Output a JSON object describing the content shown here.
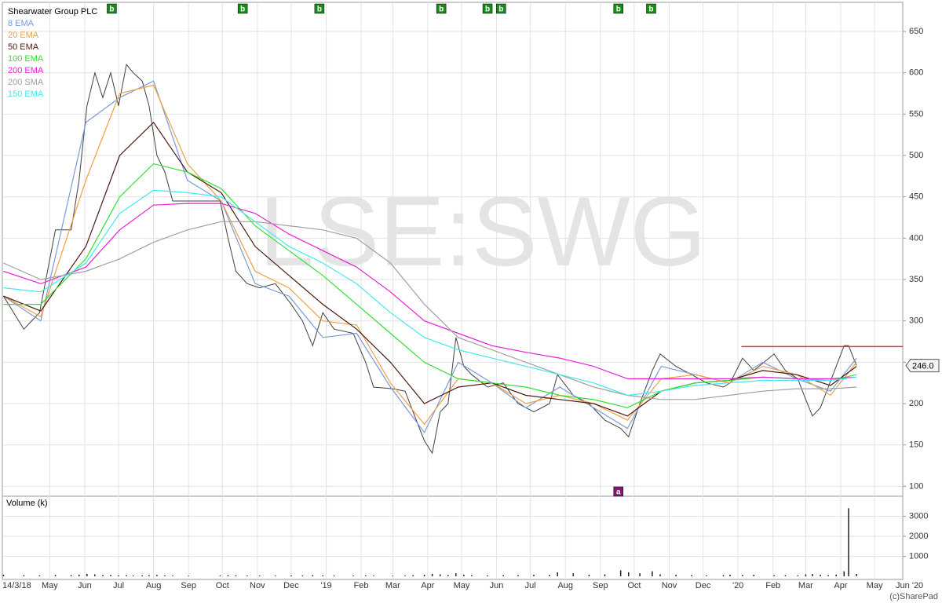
{
  "chart_data": [
    {
      "type": "line",
      "title": "Shearwater Group PLC",
      "watermark": "LSE:SWG",
      "credit": "(c)SharePad",
      "xlim": [
        6,
        804
      ],
      "ylim": [
        88,
        688
      ],
      "grid": true,
      "xticks": [
        {
          "value": 6,
          "label": "14/3/18"
        },
        {
          "value": 48,
          "label": "May"
        },
        {
          "value": 79,
          "label": "Jun"
        },
        {
          "value": 109,
          "label": "Jul"
        },
        {
          "value": 140,
          "label": "Aug"
        },
        {
          "value": 171,
          "label": "Sep"
        },
        {
          "value": 201,
          "label": "Oct"
        },
        {
          "value": 232,
          "label": "Nov"
        },
        {
          "value": 262,
          "label": "Dec"
        },
        {
          "value": 293,
          "label": "'19"
        },
        {
          "value": 324,
          "label": "Feb"
        },
        {
          "value": 352,
          "label": "Mar"
        },
        {
          "value": 383,
          "label": "Apr"
        },
        {
          "value": 413,
          "label": "May"
        },
        {
          "value": 444,
          "label": "Jun"
        },
        {
          "value": 474,
          "label": "Jul"
        },
        {
          "value": 505,
          "label": "Aug"
        },
        {
          "value": 536,
          "label": "Sep"
        },
        {
          "value": 566,
          "label": "Oct"
        },
        {
          "value": 597,
          "label": "Nov"
        },
        {
          "value": 627,
          "label": "Dec"
        },
        {
          "value": 658,
          "label": "'20"
        },
        {
          "value": 689,
          "label": "Feb"
        },
        {
          "value": 718,
          "label": "Mar"
        },
        {
          "value": 749,
          "label": "Apr"
        },
        {
          "value": 779,
          "label": "May"
        },
        {
          "value": 810,
          "label": "Jun '20"
        }
      ],
      "yticks": [
        100,
        150,
        200,
        250,
        300,
        350,
        400,
        450,
        500,
        550,
        600,
        650
      ],
      "series": [
        {
          "color": "#404040",
          "x": [
            7,
            25,
            39,
            53,
            67,
            74,
            81,
            88,
            95,
            102,
            109,
            116,
            122,
            130,
            136,
            143,
            150,
            157,
            171,
            199,
            206,
            213,
            223,
            234,
            248,
            262,
            272,
            281,
            290,
            300,
            317,
            328,
            335,
            352,
            363,
            370,
            380,
            387,
            394,
            401,
            408,
            415,
            422,
            436,
            450,
            463,
            477,
            491,
            498,
            512,
            526,
            540,
            554,
            561,
            571,
            582,
            589,
            603,
            617,
            630,
            645,
            651,
            662,
            672,
            690,
            700,
            711,
            718,
            724,
            731,
            738,
            745,
            752,
            756,
            763
          ],
          "values": [
            330,
            290,
            310,
            410,
            410,
            470,
            560,
            600,
            570,
            600,
            560,
            610,
            600,
            590,
            560,
            500,
            480,
            445,
            445,
            445,
            400,
            360,
            345,
            340,
            345,
            320,
            300,
            270,
            310,
            290,
            285,
            250,
            220,
            218,
            215,
            190,
            155,
            140,
            190,
            200,
            280,
            245,
            235,
            220,
            225,
            200,
            190,
            200,
            235,
            210,
            200,
            180,
            170,
            160,
            200,
            240,
            260,
            245,
            235,
            225,
            220,
            225,
            255,
            240,
            260,
            240,
            230,
            205,
            185,
            195,
            220,
            245,
            270,
            270,
            246
          ]
        },
        {
          "name": "8 EMA",
          "color": "#7a9ad8",
          "x": [
            7,
            40,
            80,
            110,
            140,
            170,
            200,
            230,
            260,
            290,
            320,
            350,
            380,
            410,
            440,
            470,
            500,
            530,
            560,
            590,
            620,
            650,
            680,
            710,
            740,
            763
          ],
          "values": [
            330,
            300,
            540,
            570,
            590,
            470,
            445,
            345,
            330,
            280,
            285,
            220,
            165,
            250,
            225,
            195,
            220,
            195,
            170,
            245,
            235,
            225,
            250,
            230,
            215,
            255
          ]
        },
        {
          "name": "20 EMA",
          "color": "#f0a040",
          "x": [
            7,
            40,
            80,
            110,
            140,
            170,
            200,
            230,
            260,
            290,
            320,
            350,
            380,
            410,
            440,
            470,
            500,
            530,
            560,
            590,
            620,
            650,
            680,
            710,
            740,
            763
          ],
          "values": [
            330,
            305,
            470,
            575,
            585,
            490,
            445,
            360,
            340,
            300,
            295,
            225,
            175,
            230,
            225,
            200,
            210,
            200,
            180,
            230,
            235,
            225,
            245,
            235,
            210,
            250
          ]
        },
        {
          "name": "50 EMA",
          "color": "#4a1a10",
          "x": [
            7,
            40,
            80,
            110,
            140,
            170,
            200,
            230,
            260,
            290,
            320,
            350,
            380,
            410,
            440,
            470,
            500,
            530,
            560,
            590,
            620,
            650,
            680,
            710,
            740,
            763
          ],
          "values": [
            330,
            312,
            390,
            500,
            540,
            480,
            455,
            390,
            355,
            320,
            290,
            250,
            200,
            220,
            225,
            210,
            205,
            200,
            185,
            215,
            225,
            228,
            240,
            235,
            222,
            245
          ]
        },
        {
          "name": "100 EMA",
          "color": "#30e030",
          "x": [
            7,
            40,
            80,
            110,
            140,
            170,
            200,
            230,
            260,
            290,
            320,
            350,
            380,
            410,
            440,
            470,
            500,
            530,
            560,
            590,
            620,
            650,
            680,
            710,
            740,
            763
          ],
          "values": [
            320,
            320,
            375,
            450,
            490,
            480,
            460,
            415,
            385,
            355,
            320,
            285,
            250,
            230,
            225,
            220,
            210,
            205,
            195,
            215,
            225,
            228,
            232,
            230,
            228,
            235
          ]
        },
        {
          "name": "200 EMA",
          "color": "#e820d8",
          "x": [
            7,
            40,
            80,
            110,
            140,
            170,
            200,
            230,
            260,
            290,
            320,
            350,
            380,
            410,
            440,
            470,
            500,
            530,
            560,
            590,
            620,
            650,
            680,
            710,
            740,
            763
          ],
          "values": [
            360,
            345,
            365,
            410,
            440,
            442,
            442,
            430,
            405,
            385,
            365,
            335,
            300,
            285,
            270,
            262,
            255,
            245,
            230,
            230,
            230,
            230,
            232,
            230,
            230,
            232
          ]
        },
        {
          "name": "200 SMA",
          "color": "#a0a0a0",
          "x": [
            7,
            40,
            80,
            110,
            140,
            170,
            200,
            230,
            260,
            290,
            320,
            350,
            380,
            410,
            440,
            470,
            500,
            530,
            560,
            590,
            620,
            650,
            680,
            710,
            740,
            763
          ],
          "values": [
            370,
            350,
            360,
            375,
            395,
            410,
            420,
            420,
            415,
            410,
            400,
            370,
            320,
            280,
            265,
            250,
            235,
            220,
            210,
            205,
            205,
            210,
            215,
            218,
            218,
            220
          ]
        },
        {
          "name": "150 EMA",
          "color": "#40e8f0",
          "x": [
            7,
            40,
            80,
            110,
            140,
            170,
            200,
            230,
            260,
            290,
            320,
            350,
            380,
            410,
            440,
            470,
            500,
            530,
            560,
            590,
            620,
            650,
            680,
            710,
            740,
            763
          ],
          "values": [
            340,
            335,
            370,
            430,
            458,
            455,
            450,
            420,
            390,
            370,
            345,
            310,
            280,
            265,
            255,
            245,
            235,
            225,
            210,
            215,
            222,
            225,
            228,
            228,
            228,
            232
          ]
        }
      ],
      "last_price": {
        "value": 246,
        "label": "246.0"
      },
      "hline": {
        "from": 661,
        "value": 269,
        "color": "#e83838"
      },
      "markers": [
        {
          "x": 103,
          "label": "b",
          "position": "top",
          "color": "#1a8a1a"
        },
        {
          "x": 219,
          "label": "b",
          "position": "top",
          "color": "#1a8a1a"
        },
        {
          "x": 287,
          "label": "b",
          "position": "top",
          "color": "#1a8a1a"
        },
        {
          "x": 395,
          "label": "b",
          "position": "top",
          "color": "#1a8a1a"
        },
        {
          "x": 436,
          "label": "b",
          "position": "top",
          "color": "#1a8a1a"
        },
        {
          "x": 448,
          "label": "b",
          "position": "top",
          "color": "#1a8a1a"
        },
        {
          "x": 552,
          "label": "b",
          "position": "top",
          "color": "#1a8a1a"
        },
        {
          "x": 581,
          "label": "b",
          "position": "top",
          "color": "#1a8a1a"
        },
        {
          "x": 552,
          "label": "a",
          "position": "bottom",
          "color": "#7a1a70"
        }
      ]
    },
    {
      "type": "bar",
      "title": "Volume (k)",
      "color": "#222222",
      "xlim": [
        6,
        804
      ],
      "ylim": [
        0,
        4000
      ],
      "yticks": [
        1000,
        2000,
        3000
      ],
      "x": [
        7,
        25,
        39,
        53,
        67,
        74,
        81,
        88,
        95,
        102,
        109,
        116,
        122,
        130,
        136,
        143,
        150,
        157,
        171,
        199,
        206,
        213,
        223,
        234,
        248,
        262,
        272,
        281,
        290,
        300,
        317,
        328,
        335,
        352,
        363,
        370,
        380,
        387,
        394,
        401,
        408,
        415,
        422,
        436,
        450,
        463,
        477,
        491,
        498,
        512,
        526,
        540,
        554,
        561,
        571,
        582,
        589,
        603,
        617,
        630,
        645,
        651,
        662,
        672,
        690,
        700,
        711,
        718,
        724,
        731,
        738,
        745,
        752,
        756,
        763
      ],
      "values": [
        80,
        60,
        50,
        70,
        60,
        90,
        120,
        100,
        60,
        70,
        50,
        60,
        40,
        50,
        60,
        70,
        50,
        40,
        30,
        40,
        60,
        50,
        40,
        40,
        40,
        50,
        40,
        60,
        50,
        40,
        40,
        50,
        40,
        30,
        40,
        60,
        80,
        120,
        100,
        60,
        150,
        80,
        60,
        50,
        60,
        60,
        80,
        70,
        200,
        150,
        80,
        100,
        300,
        200,
        150,
        250,
        100,
        80,
        60,
        50,
        60,
        80,
        70,
        80,
        60,
        60,
        50,
        100,
        120,
        80,
        60,
        90,
        250,
        3400,
        120
      ]
    }
  ]
}
